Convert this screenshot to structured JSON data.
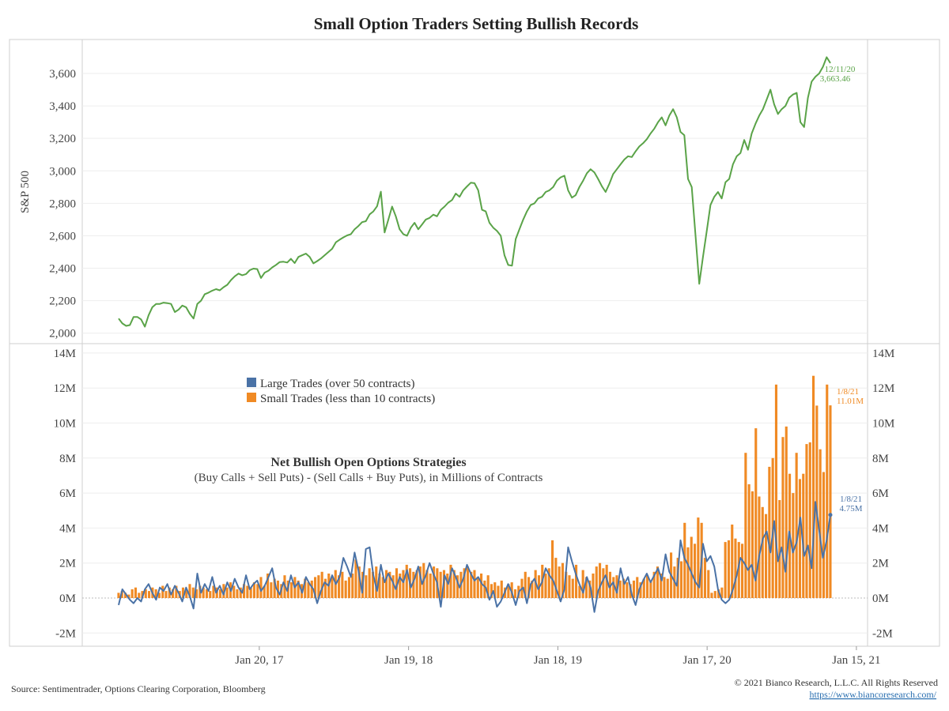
{
  "chart_data": [
    {
      "type": "line",
      "title": "Small Option Traders Setting Bullish Records",
      "ylabel": "S&P 500",
      "ylim": [
        1950,
        3780
      ],
      "yticks": [
        "2,000",
        "2,200",
        "2,400",
        "2,600",
        "2,800",
        "3,000",
        "3,200",
        "3,400",
        "3,600"
      ],
      "ytick_values": [
        2000,
        2200,
        2400,
        2600,
        2800,
        3000,
        3200,
        3400,
        3600
      ],
      "series": [
        {
          "name": "S&P 500",
          "color": "#5aa348",
          "values": [
            2090,
            2060,
            2045,
            2050,
            2100,
            2100,
            2085,
            2040,
            2110,
            2160,
            2180,
            2180,
            2188,
            2185,
            2180,
            2130,
            2145,
            2170,
            2160,
            2120,
            2090,
            2180,
            2200,
            2240,
            2250,
            2262,
            2271,
            2264,
            2283,
            2298,
            2327,
            2350,
            2367,
            2357,
            2364,
            2388,
            2398,
            2395,
            2340,
            2373,
            2385,
            2405,
            2420,
            2438,
            2440,
            2435,
            2458,
            2432,
            2470,
            2480,
            2490,
            2470,
            2430,
            2444,
            2460,
            2480,
            2500,
            2520,
            2560,
            2576,
            2590,
            2602,
            2610,
            2640,
            2660,
            2684,
            2690,
            2732,
            2750,
            2782,
            2872,
            2620,
            2700,
            2780,
            2720,
            2640,
            2610,
            2600,
            2650,
            2680,
            2640,
            2670,
            2700,
            2710,
            2730,
            2720,
            2760,
            2780,
            2804,
            2820,
            2860,
            2840,
            2880,
            2904,
            2927,
            2924,
            2880,
            2760,
            2750,
            2680,
            2650,
            2630,
            2600,
            2480,
            2420,
            2416,
            2580,
            2640,
            2700,
            2750,
            2790,
            2800,
            2830,
            2840,
            2870,
            2880,
            2900,
            2940,
            2960,
            2970,
            2880,
            2835,
            2850,
            2900,
            2940,
            2985,
            3010,
            2990,
            2950,
            2905,
            2870,
            2920,
            2980,
            3010,
            3040,
            3070,
            3090,
            3085,
            3120,
            3150,
            3170,
            3195,
            3230,
            3260,
            3300,
            3330,
            3280,
            3340,
            3380,
            3330,
            3240,
            3220,
            2950,
            2900,
            2600,
            2304,
            2470,
            2630,
            2790,
            2840,
            2870,
            2830,
            2930,
            2950,
            3040,
            3090,
            3110,
            3190,
            3130,
            3230,
            3290,
            3340,
            3380,
            3440,
            3500,
            3410,
            3350,
            3380,
            3400,
            3450,
            3470,
            3480,
            3300,
            3270,
            3450,
            3550,
            3580,
            3600,
            3640,
            3700,
            3663.46
          ]
        }
      ],
      "annotation": {
        "date": "12/11/20",
        "value": "3,663.46"
      }
    },
    {
      "type": "bar+line",
      "ylim": [
        -2,
        14
      ],
      "yticks": [
        "-2M",
        "0M",
        "2M",
        "4M",
        "6M",
        "8M",
        "10M",
        "12M",
        "14M"
      ],
      "ytick_values": [
        -2,
        0,
        2,
        4,
        6,
        8,
        10,
        12,
        14
      ],
      "x_tick_labels": [
        "Jan 20, 17",
        "Jan 19, 18",
        "Jan 18, 19",
        "Jan 17, 20",
        "Jan 15, 21"
      ],
      "x_tick_week_index": [
        51,
        103,
        155,
        207,
        259
      ],
      "inner_title": "Net Bullish Open Options Strategies",
      "inner_subtitle": "(Buy Calls + Sell Puts) - (Sell Calls + Buy Puts), in Millions of Contracts",
      "legend": [
        {
          "name": "Large Trades (over 50 contracts)",
          "color": "#4a72a6"
        },
        {
          "name": "Small Trades (less than 10 contracts)",
          "color": "#f08a24"
        }
      ],
      "series": [
        {
          "name": "Small Trades (less than 10 contracts)",
          "type": "bar",
          "color": "#f08a24",
          "values": [
            0.3,
            0.4,
            0.3,
            0.2,
            0.5,
            0.6,
            0.3,
            0.4,
            0.5,
            0.4,
            0.6,
            0.5,
            0.3,
            0.7,
            0.4,
            0.6,
            0.5,
            0.7,
            0.4,
            0.6,
            0.5,
            0.8,
            0.6,
            0.5,
            0.7,
            0.6,
            0.5,
            0.4,
            0.7,
            0.6,
            0.5,
            0.8,
            0.6,
            0.9,
            0.7,
            0.5,
            0.6,
            0.8,
            0.7,
            0.6,
            0.9,
            0.8,
            1.2,
            0.7,
            1.4,
            0.9,
            1.1,
            1.0,
            0.8,
            1.3,
            1.0,
            0.9,
            1.2,
            1.0,
            0.8,
            1.1,
            0.9,
            1.0,
            1.2,
            1.3,
            1.5,
            1.1,
            1.4,
            1.2,
            1.6,
            1.3,
            1.5,
            1.0,
            1.2,
            1.4,
            2.2,
            1.8,
            1.5,
            1.3,
            1.7,
            1.5,
            1.8,
            1.4,
            1.2,
            1.6,
            1.5,
            1.3,
            1.7,
            1.4,
            1.6,
            1.9,
            1.7,
            1.5,
            1.6,
            1.8,
            2.0,
            1.6,
            1.4,
            1.8,
            1.7,
            1.5,
            1.6,
            1.4,
            1.9,
            1.6,
            1.3,
            1.5,
            1.7,
            1.8,
            1.5,
            1.6,
            1.2,
            1.4,
            1.0,
            1.3,
            0.8,
            0.9,
            0.7,
            1.0,
            0.6,
            0.8,
            0.9,
            0.5,
            0.7,
            1.1,
            1.5,
            1.2,
            1.0,
            1.6,
            1.3,
            1.9,
            1.4,
            1.7,
            3.3,
            2.3,
            1.8,
            2.0,
            1.5,
            1.3,
            1.1,
            1.9,
            0.7,
            1.6,
            1.2,
            1.0,
            1.4,
            1.8,
            2.0,
            1.7,
            1.9,
            1.5,
            1.2,
            1.3,
            1.0,
            1.1,
            0.9,
            0.8,
            1.0,
            1.2,
            0.9,
            1.1,
            1.3,
            1.0,
            1.5,
            1.8,
            1.4,
            1.2,
            1.1,
            2.6,
            1.8,
            2.3,
            2.1,
            4.3,
            2.9,
            3.5,
            3.1,
            4.6,
            4.3,
            2.3,
            1.6,
            0.3,
            0.4,
            0.5,
            0.6,
            3.2,
            3.3,
            4.2,
            3.4,
            3.2,
            3.1,
            8.3,
            6.5,
            6.1,
            9.7,
            5.8,
            5.2,
            4.8,
            7.5,
            8.0,
            12.2,
            5.6,
            9.2,
            9.8,
            7.1,
            6.0,
            8.3,
            6.8,
            7.1,
            8.8,
            8.9,
            12.7,
            11.0,
            8.5,
            7.2,
            12.2,
            11.01
          ]
        },
        {
          "name": "Large Trades (over 50 contracts)",
          "type": "line",
          "color": "#4a72a6",
          "values": [
            -0.4,
            0.5,
            0.2,
            -0.1,
            -0.3,
            0.0,
            -0.2,
            0.5,
            0.8,
            0.3,
            -0.1,
            0.6,
            0.4,
            0.8,
            0.2,
            0.7,
            0.3,
            -0.2,
            0.6,
            0.1,
            -0.6,
            1.4,
            0.3,
            0.8,
            0.4,
            1.2,
            0.3,
            0.7,
            0.2,
            0.9,
            0.4,
            1.1,
            0.6,
            0.3,
            1.3,
            0.5,
            0.8,
            1.0,
            0.4,
            0.7,
            1.2,
            1.7,
            0.6,
            0.2,
            0.9,
            0.4,
            1.3,
            0.6,
            0.9,
            0.3,
            1.2,
            0.8,
            0.5,
            -0.3,
            0.4,
            0.9,
            0.7,
            1.3,
            0.8,
            1.2,
            2.3,
            1.8,
            1.2,
            2.6,
            1.6,
            0.3,
            2.8,
            2.9,
            1.3,
            0.4,
            1.9,
            0.9,
            1.4,
            1.0,
            0.5,
            1.2,
            0.9,
            1.6,
            0.6,
            1.1,
            1.8,
            0.8,
            1.3,
            2.0,
            1.4,
            0.9,
            -0.5,
            1.3,
            0.8,
            1.7,
            1.2,
            0.6,
            1.1,
            1.9,
            1.4,
            1.0,
            1.2,
            0.8,
            0.6,
            -0.1,
            0.4,
            -0.5,
            -0.2,
            0.3,
            0.8,
            0.3,
            -0.4,
            0.4,
            0.6,
            -0.3,
            0.8,
            1.1,
            0.5,
            0.9,
            1.7,
            1.3,
            1.0,
            0.4,
            -0.2,
            0.5,
            2.9,
            2.1,
            1.4,
            0.8,
            0.3,
            1.2,
            0.6,
            -0.8,
            0.4,
            0.9,
            1.3,
            0.6,
            0.9,
            0.3,
            1.7,
            0.8,
            1.2,
            0.2,
            -0.4,
            0.5,
            1.0,
            1.4,
            0.9,
            1.3,
            1.7,
            1.0,
            2.5,
            1.5,
            1.1,
            0.7,
            3.3,
            2.3,
            1.9,
            1.4,
            0.9,
            0.6,
            3.1,
            2.1,
            2.4,
            1.8,
            0.5,
            -0.1,
            -0.3,
            -0.1,
            0.5,
            1.3,
            2.3,
            2.0,
            1.6,
            1.9,
            1.0,
            2.4,
            3.4,
            3.8,
            2.6,
            4.4,
            2.1,
            2.9,
            1.5,
            3.8,
            2.6,
            3.2,
            4.6,
            2.4,
            3.0,
            1.7,
            5.5,
            3.9,
            2.3,
            3.3,
            4.75
          ]
        }
      ],
      "annotation_small": {
        "date": "1/8/21",
        "value": "11.01M"
      },
      "annotation_large": {
        "date": "1/8/21",
        "value": "4.75M"
      }
    }
  ],
  "footer": {
    "source": "Source: Sentimentrader, Options Clearing Corporation, Bloomberg",
    "copyright": "© 2021 Bianco Research, L.L.C. All Rights Reserved",
    "url": "https://www.biancoresearch.com/"
  }
}
